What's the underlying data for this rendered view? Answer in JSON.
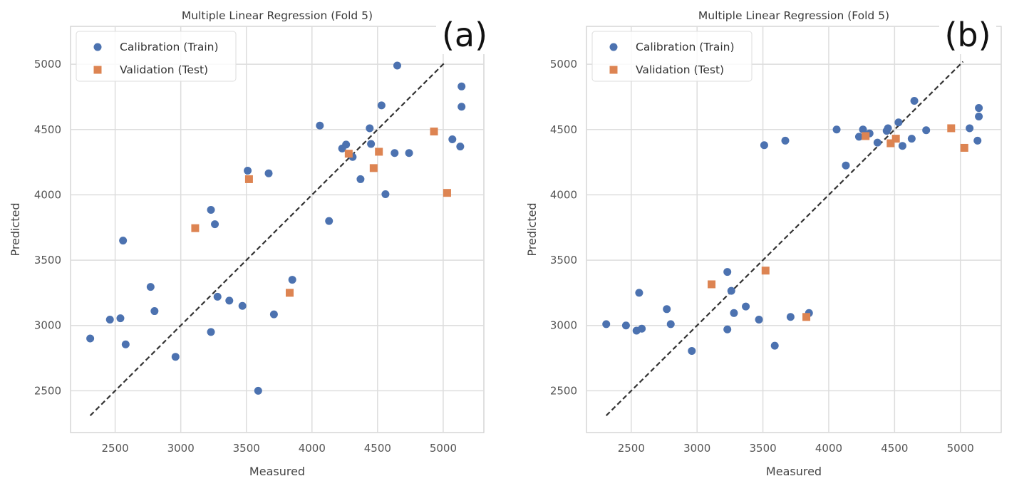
{
  "colors": {
    "train": "#4c72b0",
    "test": "#dd8452",
    "grid": "#dddddd",
    "frame": "#cccccc",
    "identity": "#333333"
  },
  "chart_data": [
    {
      "type": "scatter",
      "panel_label": "(a)",
      "title": "Multiple Linear Regression (Fold 5)",
      "xlabel": "Measured",
      "ylabel": "Predicted",
      "xlim": [
        2160,
        5310
      ],
      "ylim": [
        2180,
        5290
      ],
      "xticks": [
        2500,
        3000,
        3500,
        4000,
        4500,
        5000
      ],
      "yticks": [
        2500,
        3000,
        3500,
        4000,
        4500,
        5000
      ],
      "grid": true,
      "legend_position": "top-left",
      "reference_line": {
        "name": "y = x",
        "style": "dashed",
        "from": 2310,
        "to": 5020
      },
      "series": [
        {
          "name": "Calibration (Train)",
          "marker": "circle",
          "color": "#4c72b0",
          "points": [
            [
              2310,
              2900
            ],
            [
              2460,
              3045
            ],
            [
              2540,
              3055
            ],
            [
              2560,
              3650
            ],
            [
              2580,
              2855
            ],
            [
              2770,
              3295
            ],
            [
              2800,
              3110
            ],
            [
              2960,
              2760
            ],
            [
              3230,
              3885
            ],
            [
              3230,
              2950
            ],
            [
              3260,
              3775
            ],
            [
              3280,
              3220
            ],
            [
              3370,
              3190
            ],
            [
              3470,
              3150
            ],
            [
              3510,
              4185
            ],
            [
              3590,
              2500
            ],
            [
              3670,
              4165
            ],
            [
              3710,
              3085
            ],
            [
              3850,
              3350
            ],
            [
              4060,
              4530
            ],
            [
              4130,
              3800
            ],
            [
              4230,
              4355
            ],
            [
              4260,
              4385
            ],
            [
              4310,
              4290
            ],
            [
              4370,
              4120
            ],
            [
              4440,
              4510
            ],
            [
              4450,
              4390
            ],
            [
              4530,
              4685
            ],
            [
              4560,
              4005
            ],
            [
              4630,
              4320
            ],
            [
              4650,
              4990
            ],
            [
              4740,
              4320
            ],
            [
              5070,
              4425
            ],
            [
              5130,
              4370
            ],
            [
              5140,
              4830
            ],
            [
              5140,
              4675
            ]
          ]
        },
        {
          "name": "Validation (Test)",
          "marker": "square",
          "color": "#dd8452",
          "points": [
            [
              3110,
              3745
            ],
            [
              3520,
              4120
            ],
            [
              3830,
              3250
            ],
            [
              4280,
              4315
            ],
            [
              4470,
              4205
            ],
            [
              4510,
              4330
            ],
            [
              4930,
              4485
            ],
            [
              5030,
              4015
            ]
          ]
        }
      ]
    },
    {
      "type": "scatter",
      "panel_label": "(b)",
      "title": "Multiple Linear Regression (Fold 5)",
      "xlabel": "Measured",
      "ylabel": "Predicted",
      "xlim": [
        2160,
        5310
      ],
      "ylim": [
        2180,
        5290
      ],
      "xticks": [
        2500,
        3000,
        3500,
        4000,
        4500,
        5000
      ],
      "yticks": [
        2500,
        3000,
        3500,
        4000,
        4500,
        5000
      ],
      "grid": true,
      "legend_position": "top-left",
      "reference_line": {
        "name": "y = x",
        "style": "dashed",
        "from": 2310,
        "to": 5020
      },
      "series": [
        {
          "name": "Calibration (Train)",
          "marker": "circle",
          "color": "#4c72b0",
          "points": [
            [
              2310,
              3010
            ],
            [
              2460,
              3000
            ],
            [
              2540,
              2960
            ],
            [
              2560,
              3250
            ],
            [
              2580,
              2975
            ],
            [
              2770,
              3125
            ],
            [
              2800,
              3010
            ],
            [
              2960,
              2805
            ],
            [
              3230,
              3410
            ],
            [
              3230,
              2970
            ],
            [
              3260,
              3265
            ],
            [
              3280,
              3095
            ],
            [
              3370,
              3145
            ],
            [
              3470,
              3045
            ],
            [
              3510,
              4380
            ],
            [
              3590,
              2845
            ],
            [
              3670,
              4415
            ],
            [
              3710,
              3065
            ],
            [
              3850,
              3095
            ],
            [
              4060,
              4500
            ],
            [
              4130,
              4225
            ],
            [
              4230,
              4445
            ],
            [
              4260,
              4500
            ],
            [
              4310,
              4470
            ],
            [
              4370,
              4400
            ],
            [
              4440,
              4490
            ],
            [
              4450,
              4510
            ],
            [
              4530,
              4555
            ],
            [
              4560,
              4375
            ],
            [
              4630,
              4430
            ],
            [
              4650,
              4720
            ],
            [
              4740,
              4495
            ],
            [
              5070,
              4510
            ],
            [
              5130,
              4415
            ],
            [
              5140,
              4600
            ],
            [
              5140,
              4665
            ]
          ]
        },
        {
          "name": "Validation (Test)",
          "marker": "square",
          "color": "#dd8452",
          "points": [
            [
              3110,
              3315
            ],
            [
              3520,
              3420
            ],
            [
              3830,
              3065
            ],
            [
              4280,
              4450
            ],
            [
              4470,
              4395
            ],
            [
              4510,
              4430
            ],
            [
              4930,
              4510
            ],
            [
              5030,
              4360
            ]
          ]
        }
      ]
    }
  ]
}
